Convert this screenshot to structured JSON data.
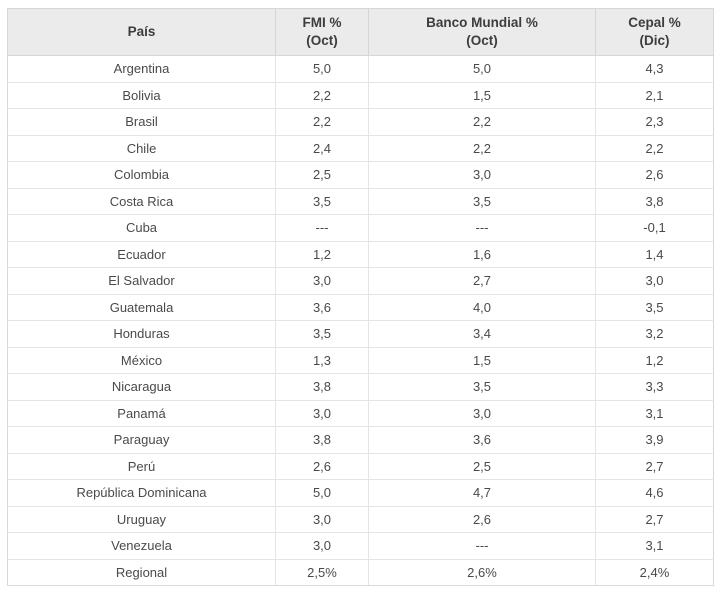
{
  "table": {
    "columns": [
      {
        "line1": "País"
      },
      {
        "line1": "FMI %",
        "line2": "(Oct)"
      },
      {
        "line1": "Banco Mundial %",
        "line2": "(Oct)"
      },
      {
        "line1": "Cepal %",
        "line2": "(Dic)"
      }
    ],
    "rows": [
      [
        "Argentina",
        "5,0",
        "5,0",
        "4,3"
      ],
      [
        "Bolivia",
        "2,2",
        "1,5",
        "2,1"
      ],
      [
        "Brasil",
        "2,2",
        "2,2",
        "2,3"
      ],
      [
        "Chile",
        "2,4",
        "2,2",
        "2,2"
      ],
      [
        "Colombia",
        "2,5",
        "3,0",
        "2,6"
      ],
      [
        "Costa Rica",
        "3,5",
        "3,5",
        "3,8"
      ],
      [
        "Cuba",
        "---",
        "---",
        "-0,1"
      ],
      [
        "Ecuador",
        "1,2",
        "1,6",
        "1,4"
      ],
      [
        "El Salvador",
        "3,0",
        "2,7",
        "3,0"
      ],
      [
        "Guatemala",
        "3,6",
        "4,0",
        "3,5"
      ],
      [
        "Honduras",
        "3,5",
        "3,4",
        "3,2"
      ],
      [
        "México",
        "1,3",
        "1,5",
        "1,2"
      ],
      [
        "Nicaragua",
        "3,8",
        "3,5",
        "3,3"
      ],
      [
        "Panamá",
        "3,0",
        "3,0",
        "3,1"
      ],
      [
        "Paraguay",
        "3,8",
        "3,6",
        "3,9"
      ],
      [
        "Perú",
        "2,6",
        "2,5",
        "2,7"
      ],
      [
        "República Dominicana",
        "5,0",
        "4,7",
        "4,6"
      ],
      [
        "Uruguay",
        "3,0",
        "2,6",
        "2,7"
      ],
      [
        "Venezuela",
        "3,0",
        "---",
        "3,1"
      ]
    ],
    "footer": {
      "label": "Regional",
      "values": [
        "2,5%",
        "2,6%",
        "2,4%"
      ]
    }
  },
  "colors": {
    "header_bg": "#ebebeb",
    "outer_border": "#d9d9d9",
    "inner_border": "#e4e4e4",
    "header_text": "#3d3d3d",
    "body_text": "#4a4a4a"
  },
  "chart_data": {
    "type": "table",
    "title": "",
    "categories": [
      "Argentina",
      "Bolivia",
      "Brasil",
      "Chile",
      "Colombia",
      "Costa Rica",
      "Cuba",
      "Ecuador",
      "El Salvador",
      "Guatemala",
      "Honduras",
      "México",
      "Nicaragua",
      "Panamá",
      "Paraguay",
      "Perú",
      "República Dominicana",
      "Uruguay",
      "Venezuela"
    ],
    "series": [
      {
        "name": "FMI % (Oct)",
        "values": [
          5.0,
          2.2,
          2.2,
          2.4,
          2.5,
          3.5,
          null,
          1.2,
          3.0,
          3.6,
          3.5,
          1.3,
          3.8,
          3.0,
          3.8,
          2.6,
          5.0,
          3.0,
          3.0
        ]
      },
      {
        "name": "Banco Mundial % (Oct)",
        "values": [
          5.0,
          1.5,
          2.2,
          2.2,
          3.0,
          3.5,
          null,
          1.6,
          2.7,
          4.0,
          3.4,
          1.5,
          3.5,
          3.0,
          3.6,
          2.5,
          4.7,
          2.6,
          null
        ]
      },
      {
        "name": "Cepal % (Dic)",
        "values": [
          4.3,
          2.1,
          2.3,
          2.2,
          2.6,
          3.8,
          -0.1,
          1.4,
          3.0,
          3.5,
          3.2,
          1.2,
          3.3,
          3.1,
          3.9,
          2.7,
          4.6,
          2.7,
          3.1
        ]
      }
    ],
    "footer_row": {
      "label": "Regional",
      "values": [
        2.5,
        2.6,
        2.4
      ]
    },
    "notes": "--- indicates no data; decimal comma formatting; Regional row bold except Cepal value"
  }
}
